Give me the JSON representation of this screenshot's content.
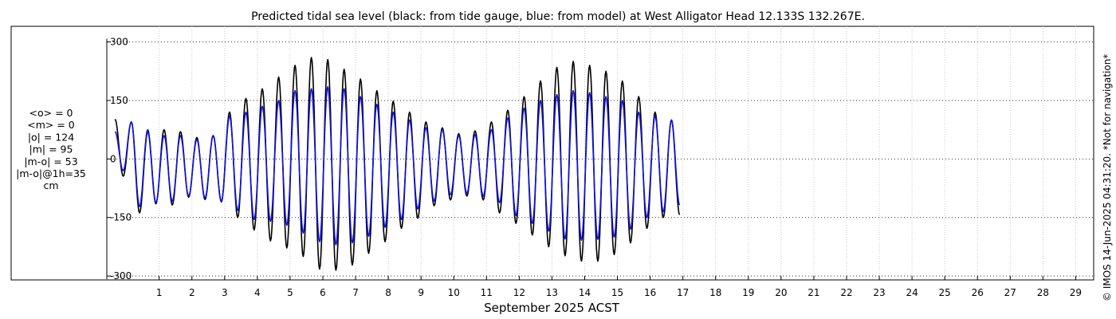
{
  "chart_data": {
    "type": "line",
    "title": "Predicted tidal sea level (black: from tide gauge, blue: from model) at West Alligator Head 12.133S 132.267E.",
    "xlabel": "September 2025 ACST",
    "ylabel": "",
    "ylim": [
      -310,
      340
    ],
    "xlim": [
      -0.6,
      29.55
    ],
    "grid": true,
    "x_ticks": [
      1,
      2,
      3,
      4,
      5,
      6,
      7,
      8,
      9,
      10,
      11,
      12,
      13,
      14,
      15,
      16,
      17,
      18,
      19,
      20,
      21,
      22,
      23,
      24,
      25,
      26,
      27,
      28,
      29
    ],
    "x_tick_labels": [
      "1",
      "2",
      "3",
      "4",
      "5",
      "6",
      "7",
      "8",
      "9",
      "10",
      "11",
      "12",
      "13",
      "14",
      "15",
      "16",
      "17",
      "18",
      "19",
      "20",
      "21",
      "22",
      "23",
      "24",
      "25",
      "26",
      "27",
      "28",
      "29"
    ],
    "y_ticks": [
      -300,
      -150,
      0,
      150,
      300
    ],
    "y_tick_labels": [
      "-300",
      "-150",
      "0",
      "150",
      "300"
    ],
    "series": [
      {
        "color": "#000000",
        "x_start": -0.35,
        "step_days": 0.25,
        "values": [
          102,
          -44,
          95,
          -138,
          70,
          -115,
          75,
          -118,
          70,
          -98,
          55,
          -104,
          60,
          -110,
          120,
          -150,
          155,
          -182,
          180,
          -210,
          210,
          -228,
          240,
          -250,
          260,
          -282,
          255,
          -285,
          230,
          -272,
          205,
          -242,
          175,
          -212,
          148,
          -178,
          120,
          -152,
          95,
          -120,
          80,
          -105,
          65,
          -95,
          72,
          -105,
          95,
          -138,
          125,
          -165,
          160,
          -195,
          200,
          -225,
          235,
          -248,
          250,
          -262,
          240,
          -262,
          225,
          -245,
          200,
          -215,
          160,
          -178,
          120,
          -150,
          100,
          -143
        ]
      },
      {
        "color": "#1010e0",
        "x_start": -0.35,
        "step_days": 0.25,
        "values": [
          70,
          -30,
          95,
          -122,
          75,
          -112,
          60,
          -108,
          60,
          -95,
          50,
          -100,
          60,
          -108,
          110,
          -132,
          120,
          -155,
          135,
          -160,
          150,
          -170,
          175,
          -190,
          180,
          -212,
          185,
          -220,
          180,
          -215,
          160,
          -198,
          140,
          -175,
          120,
          -155,
          100,
          -128,
          80,
          -108,
          75,
          -92,
          60,
          -88,
          62,
          -95,
          75,
          -112,
          105,
          -145,
          130,
          -165,
          150,
          -185,
          165,
          -205,
          175,
          -208,
          170,
          -206,
          160,
          -200,
          150,
          -180,
          120,
          -150,
          110,
          -135,
          100,
          -118
        ]
      }
    ]
  },
  "stats": {
    "lines": [
      "<o> = 0",
      "<m> = 0",
      "|o| = 124",
      "|m| = 95",
      "|m-o| = 53",
      "|m-o|@1h=35",
      "cm"
    ]
  },
  "credit": "© IMOS 14-Jun-2025 04:31:20. *Not for navigation*"
}
